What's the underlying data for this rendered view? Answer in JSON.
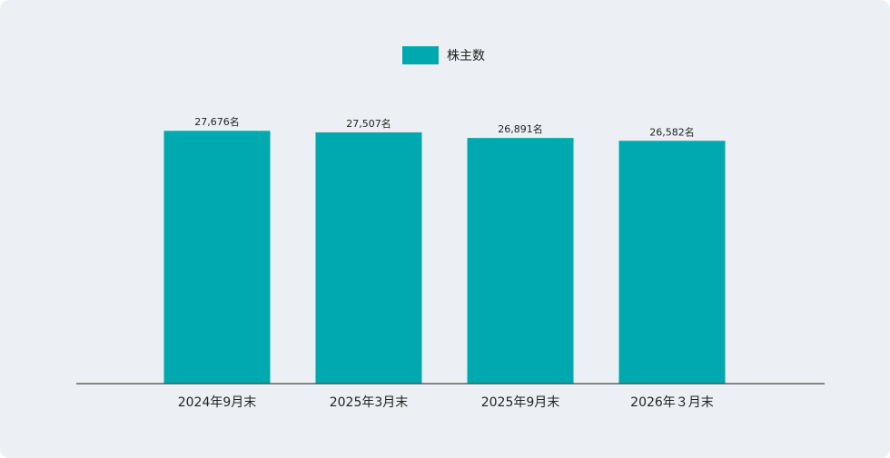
{
  "chart_data": {
    "type": "bar",
    "categories": [
      "2024年9月末",
      "2025年3月末",
      "2025年9月末",
      "2026年３月末"
    ],
    "series": [
      {
        "name": "株主数",
        "values": [
          27676,
          27507,
          26891,
          26582
        ],
        "data_labels": [
          "27,676名",
          "27,507名",
          "26,891名",
          "26,582名"
        ]
      }
    ],
    "title": "",
    "xlabel": "",
    "ylabel": "",
    "ylim": [
      0,
      27700
    ],
    "grid": false,
    "legend_position": "top-center"
  },
  "colors": {
    "bar": "#00a8b0",
    "background": "#eceff3",
    "axis": "#444444"
  }
}
